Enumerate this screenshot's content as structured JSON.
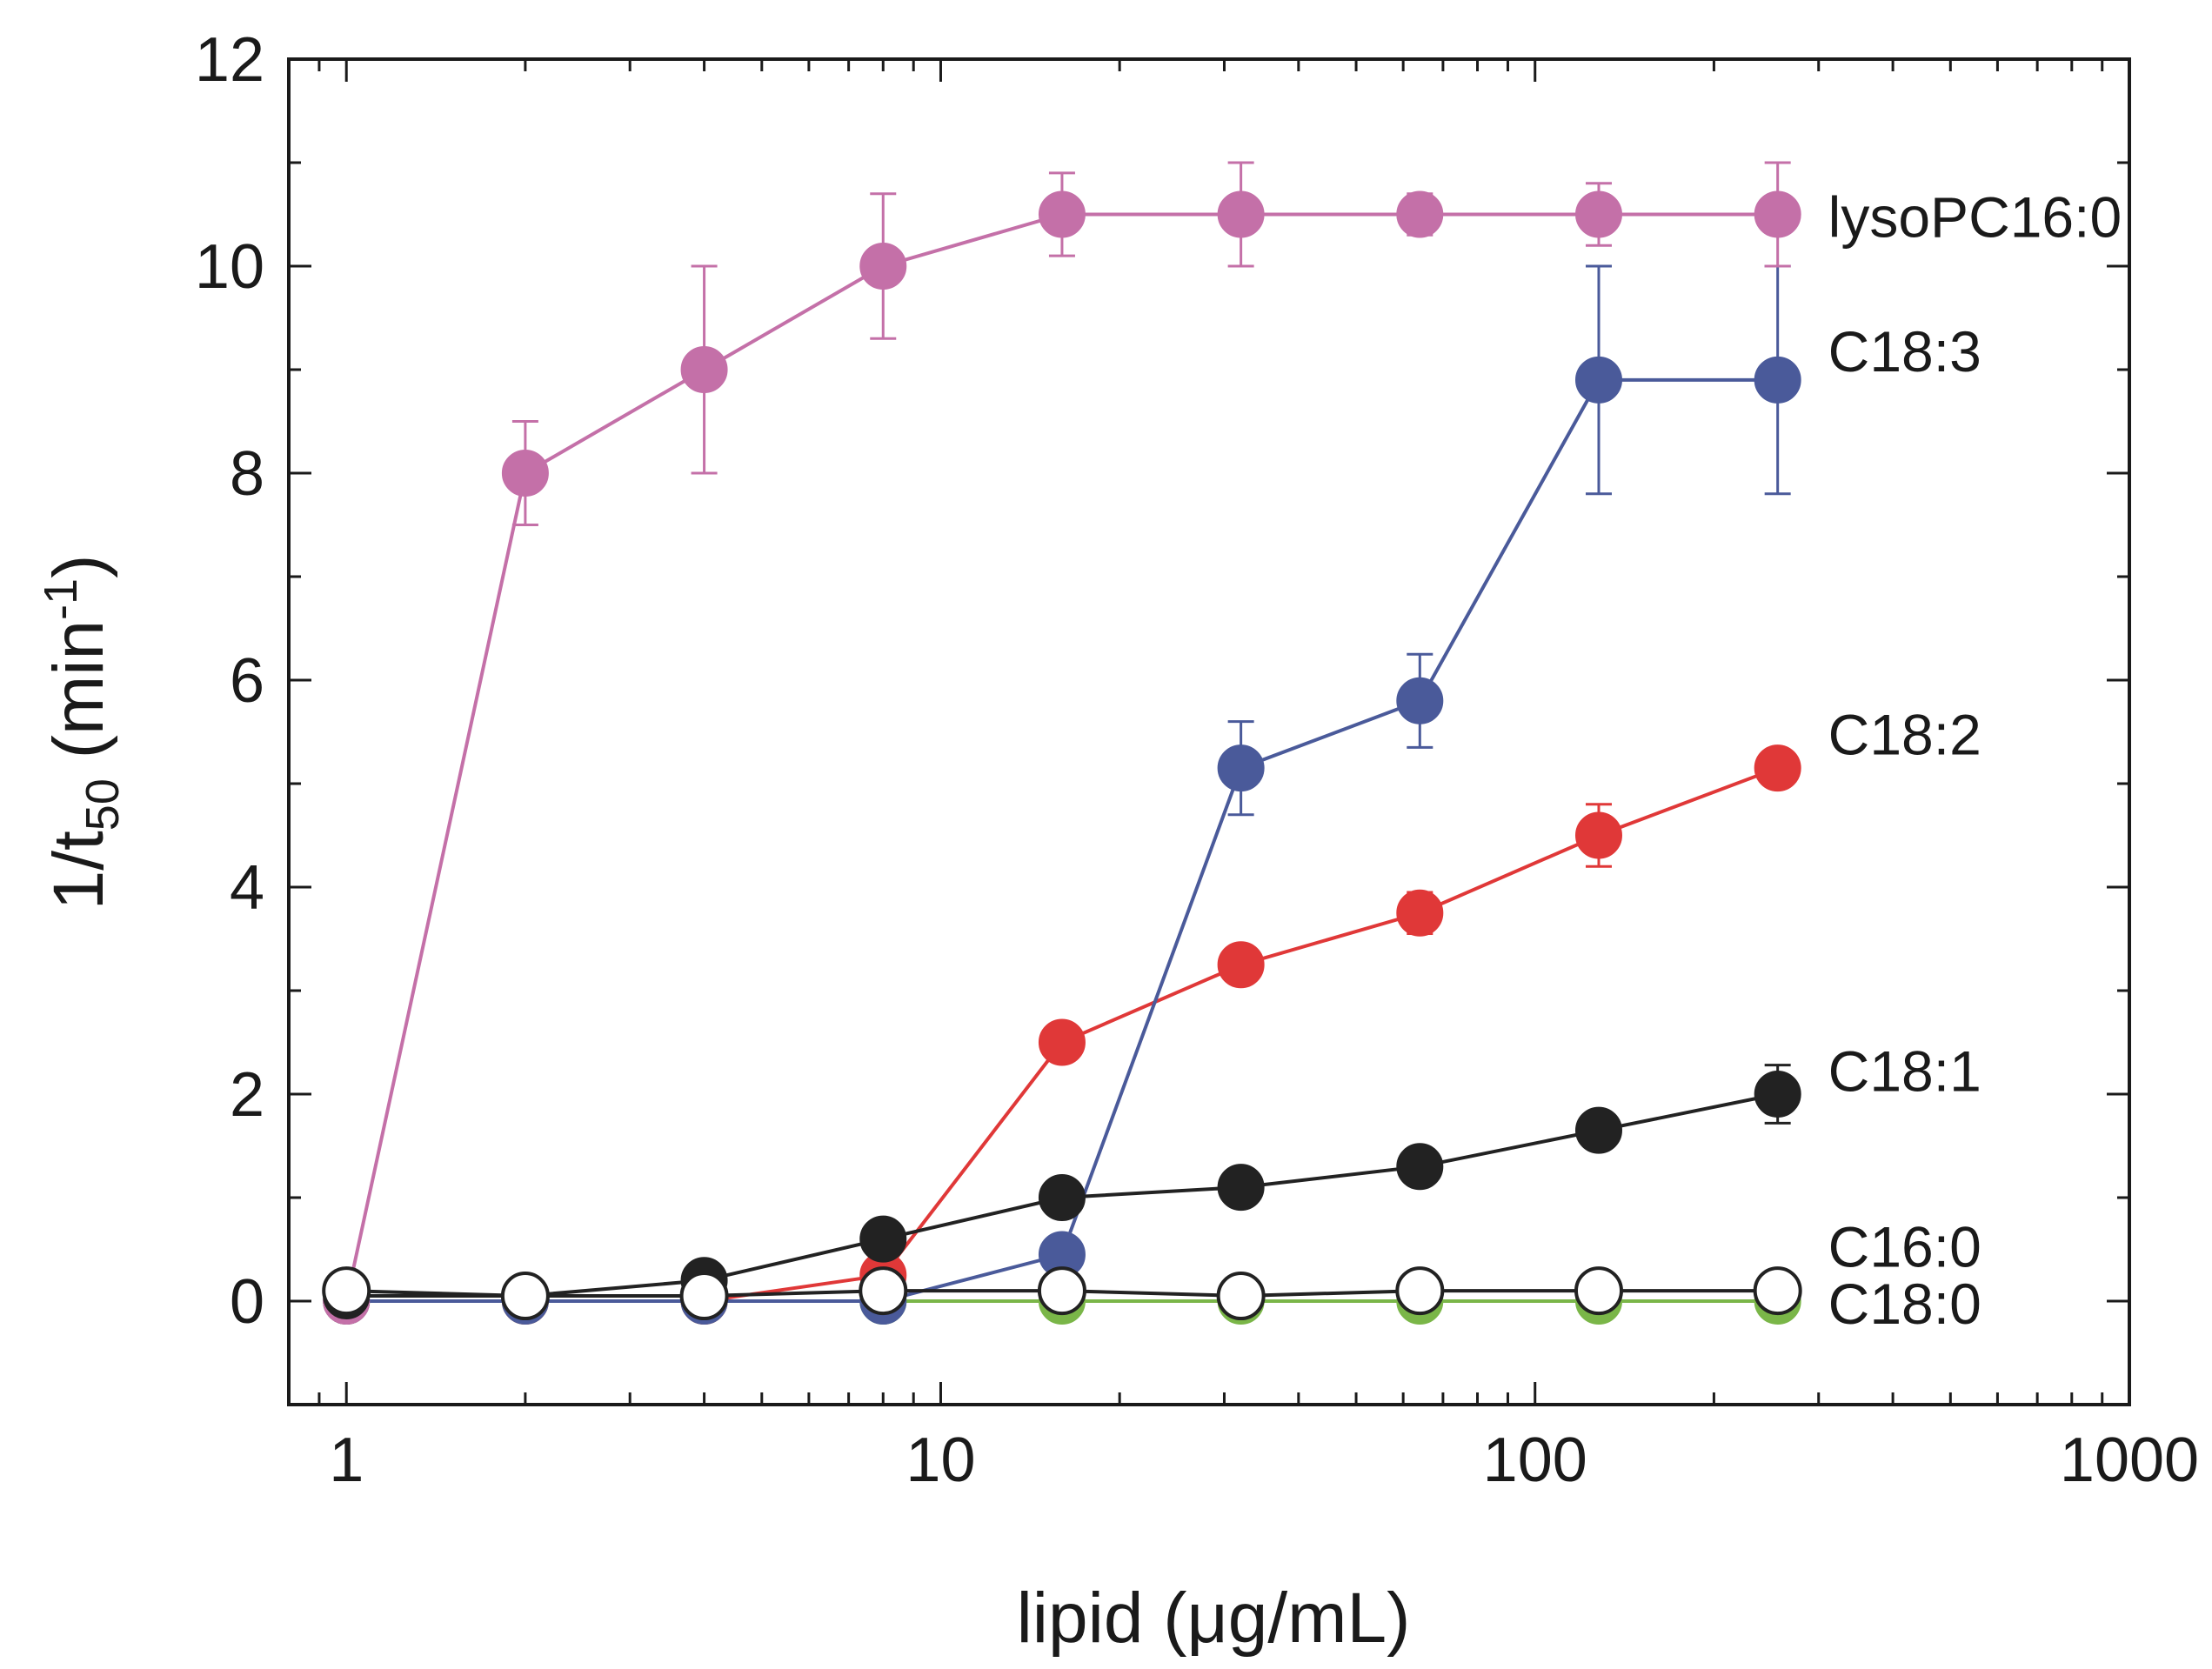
{
  "chart_data": {
    "type": "line",
    "xscale": "log",
    "xlabel": "lipid (μg/mL)",
    "ylabel": {
      "main": "1/t",
      "subscript": "50",
      "unit_prefix": " (min",
      "unit_superscript": "-1",
      "unit_suffix": ")"
    },
    "xlim": [
      0.8,
      1000
    ],
    "ylim": [
      -1,
      12
    ],
    "xticks": [
      1,
      10,
      100,
      1000
    ],
    "xtick_labels": [
      "1",
      "10",
      "100",
      "1000"
    ],
    "yticks": [
      0,
      2,
      4,
      6,
      8,
      10,
      12
    ],
    "ytick_labels": [
      "0",
      "2",
      "4",
      "6",
      "8",
      "10",
      "12"
    ],
    "x": [
      1,
      2,
      4,
      8,
      16,
      32,
      64,
      128,
      256
    ],
    "series": [
      {
        "name": "lysoPC16:0",
        "color": "#c470a8",
        "fill": "#c470a8",
        "values": [
          0,
          8.0,
          9.0,
          10.0,
          10.5,
          10.5,
          10.5,
          10.5,
          10.5
        ],
        "errors": [
          0,
          0.5,
          1.0,
          0.7,
          0.4,
          0.5,
          0.2,
          0.3,
          0.5
        ]
      },
      {
        "name": "C18:3",
        "color": "#4a5a9a",
        "fill": "#4a5a9a",
        "values": [
          0,
          0,
          0,
          0,
          0.45,
          5.15,
          5.8,
          8.9,
          8.9
        ],
        "errors": [
          0,
          0,
          0,
          0,
          0,
          0.45,
          0.45,
          1.1,
          1.1
        ]
      },
      {
        "name": "C18:2",
        "color": "#e03838",
        "fill": "#e03838",
        "values": [
          0,
          0,
          0,
          0.25,
          2.5,
          3.25,
          3.75,
          4.5,
          5.15
        ],
        "errors": [
          0,
          0,
          0,
          0,
          0,
          0,
          0.2,
          0.3,
          0
        ]
      },
      {
        "name": "C18:1",
        "color": "#222222",
        "fill": "#222222",
        "values": [
          0.05,
          0.05,
          0.2,
          0.6,
          1.0,
          1.1,
          1.3,
          1.65,
          2.0
        ],
        "errors": [
          0,
          0,
          0,
          0,
          0,
          0,
          0,
          0.1,
          0.28
        ]
      },
      {
        "name": "C18:0",
        "color": "#7ab648",
        "fill": "#7ab648",
        "values": [
          0,
          0,
          0,
          0,
          0,
          0,
          0,
          0,
          0
        ],
        "errors": [
          0,
          0,
          0,
          0,
          0,
          0,
          0,
          0,
          0
        ]
      },
      {
        "name": "C16:0",
        "color": "#222222",
        "fill": "#ffffff",
        "values": [
          0.1,
          0.05,
          0.05,
          0.1,
          0.1,
          0.05,
          0.1,
          0.1,
          0.1
        ],
        "errors": [
          0,
          0,
          0,
          0,
          0,
          0,
          0,
          0,
          0
        ]
      }
    ],
    "annotations": [
      {
        "text": "lysoPC16:0",
        "series": "lysoPC16:0",
        "at_x": 256,
        "at_y": 10.5
      },
      {
        "text": "C18:3",
        "series": "C18:3",
        "at_x": 256,
        "at_y": 9.2
      },
      {
        "text": "C18:2",
        "series": "C18:2",
        "at_x": 256,
        "at_y": 5.5
      },
      {
        "text": "C18:1",
        "series": "C18:1",
        "at_x": 256,
        "at_y": 2.25
      },
      {
        "text": "C16:0",
        "series": "C16:0",
        "at_x": 256,
        "at_y": 0.55
      },
      {
        "text": "C18:0",
        "series": "C18:0",
        "at_x": 256,
        "at_y": 0.0
      }
    ],
    "grid": false,
    "legend": "none (inline labels at right end of each line)"
  }
}
